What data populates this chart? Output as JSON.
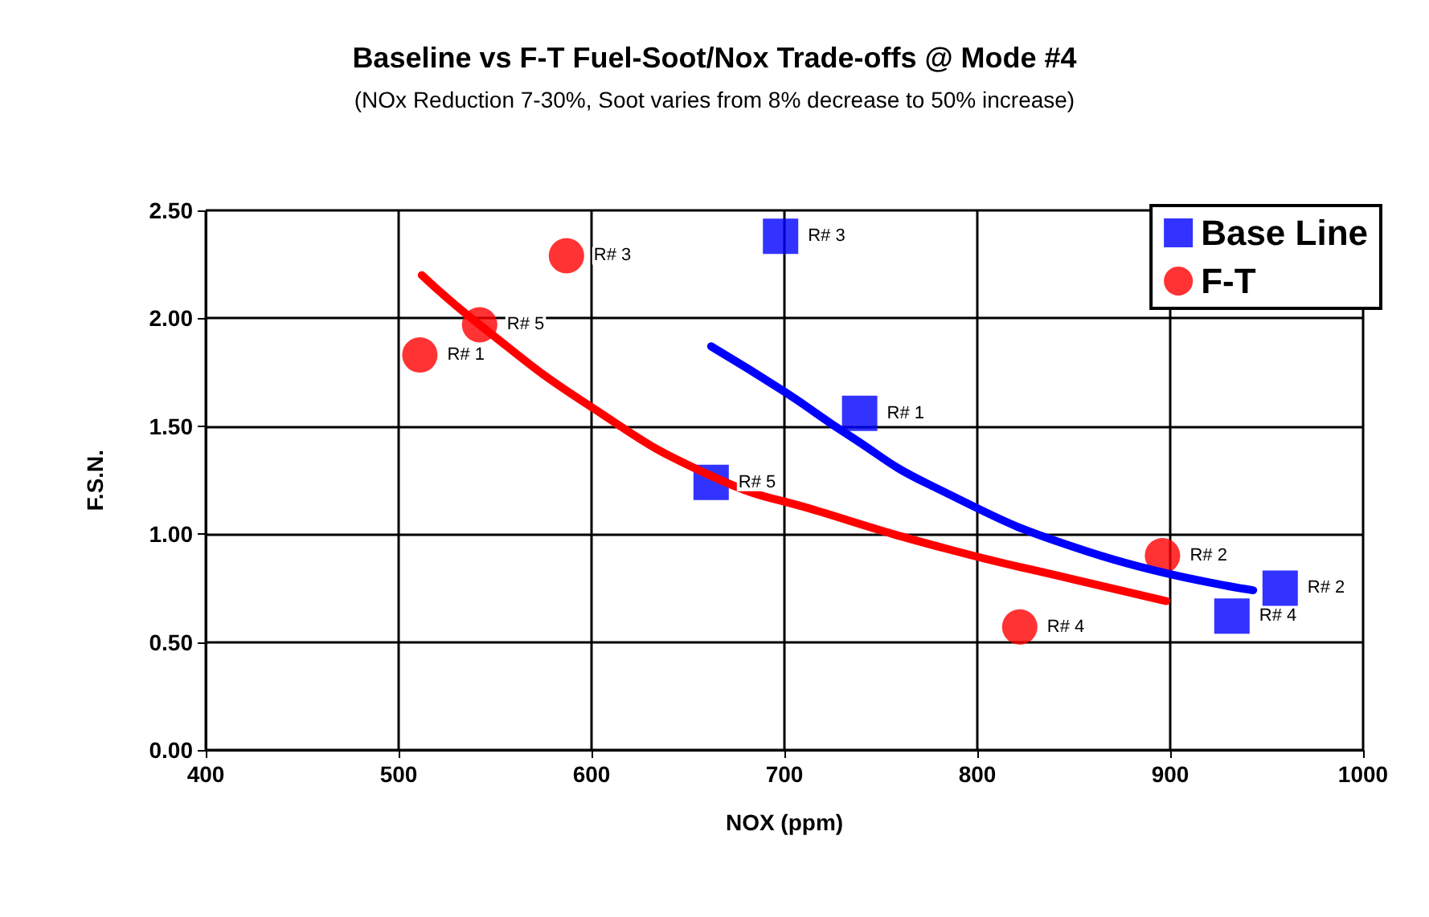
{
  "chart_data": {
    "type": "scatter",
    "title": "Baseline vs F-T Fuel-Soot/Nox Trade-offs @ Mode #4",
    "subtitle": "(NOx Reduction 7-30%, Soot varies from 8% decrease to 50% increase)",
    "xlabel": "NOX (ppm)",
    "ylabel": "F.S.N.",
    "xlim": [
      400,
      1000
    ],
    "xticks": [
      400,
      500,
      600,
      700,
      800,
      900,
      1000
    ],
    "ylim": [
      0,
      2.5
    ],
    "yticks": [
      {
        "value": 0,
        "label": "0.00"
      },
      {
        "value": 0.5,
        "label": "0.50"
      },
      {
        "value": 1,
        "label": "1.00"
      },
      {
        "value": 1.5,
        "label": "1.50"
      },
      {
        "value": 2,
        "label": "2.00"
      },
      {
        "value": 2.5,
        "label": "2.50"
      }
    ],
    "grid": true,
    "legend": "top right",
    "annotations": [
      {
        "text": "R# 1",
        "x": 739,
        "y": 1.56
      },
      {
        "text": "R# 2",
        "x": 957,
        "y": 0.75
      },
      {
        "text": "R# 3",
        "x": 698,
        "y": 2.38
      },
      {
        "text": "R# 4",
        "x": 932,
        "y": 0.62
      },
      {
        "text": "R# 5",
        "x": 662,
        "y": 1.24
      },
      {
        "text": "R# 1",
        "x": 511,
        "y": 1.83
      },
      {
        "text": "R# 2",
        "x": 896,
        "y": 0.9
      },
      {
        "text": "R# 3",
        "x": 587,
        "y": 2.29
      },
      {
        "text": "R# 4",
        "x": 822,
        "y": 0.57
      },
      {
        "text": "R# 5",
        "x": 542,
        "y": 1.97
      }
    ],
    "series": [
      {
        "name": "Base Line",
        "color": "#0000ff",
        "marker": "square",
        "x": [
          739,
          957,
          698,
          932,
          662
        ],
        "values": [
          1.56,
          0.75,
          2.38,
          0.62,
          1.24
        ]
      },
      {
        "name": "F-T",
        "color": "#ff0000",
        "marker": "circle",
        "x": [
          511,
          896,
          587,
          822,
          542
        ],
        "values": [
          1.83,
          0.9,
          2.29,
          0.57,
          1.97
        ]
      },
      {
        "type": "line",
        "color": "#0000ff",
        "line_style": "solid",
        "x": [
          662,
          700,
          733,
          775,
          857,
          943
        ],
        "values": [
          1.87,
          1.66,
          1.46,
          1.23,
          0.92,
          0.74
        ]
      },
      {
        "type": "line",
        "color": "#ff0000",
        "line_style": "solid",
        "x": [
          512,
          542,
          598,
          662,
          720,
          785,
          850,
          898
        ],
        "values": [
          2.2,
          1.97,
          1.6,
          1.27,
          1.1,
          0.93,
          0.79,
          0.69
        ]
      }
    ]
  }
}
